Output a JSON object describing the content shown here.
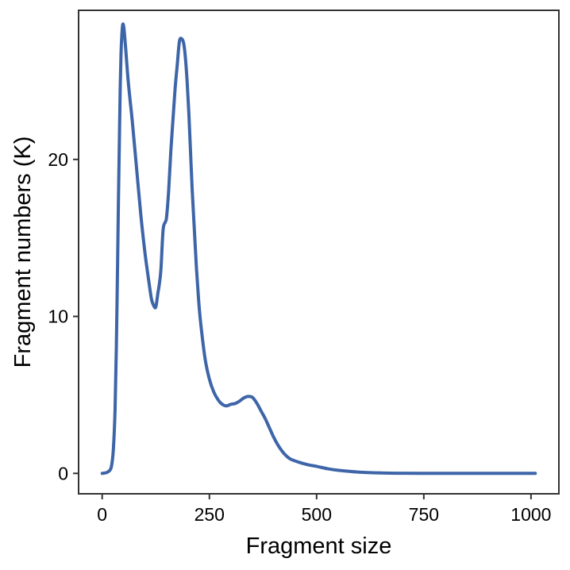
{
  "chart_data": {
    "type": "line",
    "title": "",
    "xlabel": "Fragment size",
    "ylabel": "Fragment numbers (K)",
    "xlim": [
      -55,
      1065
    ],
    "ylim": [
      -1.3,
      29.5
    ],
    "xticks": [
      0,
      250,
      500,
      750,
      1000
    ],
    "yticks": [
      0,
      10,
      20
    ],
    "xtick_labels": [
      "0",
      "250",
      "500",
      "750",
      "1000"
    ],
    "ytick_labels": [
      "0",
      "10",
      "20"
    ],
    "grid": false,
    "legend": "none",
    "colors": {
      "line": "#3d65a8",
      "frame": "#333333",
      "background": "#ffffff"
    },
    "series": [
      {
        "x": [
          0,
          10,
          18,
          22,
          26,
          30,
          33,
          36,
          38,
          40,
          42,
          44,
          46,
          48,
          50,
          52,
          55,
          60,
          65,
          70,
          80,
          90,
          100,
          110,
          115,
          120,
          125,
          130,
          133,
          137,
          142,
          147,
          150,
          155,
          160,
          165,
          170,
          175,
          180,
          185,
          190,
          194,
          198,
          202,
          206,
          210,
          215,
          220,
          225,
          230,
          240,
          250,
          260,
          270,
          280,
          290,
          300,
          310,
          320,
          330,
          340,
          350,
          360,
          370,
          380,
          390,
          400,
          410,
          420,
          430,
          440,
          460,
          480,
          500,
          525,
          550,
          600,
          650,
          700,
          750,
          800,
          850,
          900,
          950,
          1000,
          1010
        ],
        "y": [
          0,
          0.05,
          0.2,
          0.5,
          1.5,
          4.0,
          8.0,
          13.5,
          17.5,
          21.0,
          24.5,
          26.8,
          28.0,
          28.6,
          28.5,
          28.0,
          27.0,
          25.2,
          23.8,
          22.5,
          19.5,
          16.5,
          14.0,
          12.0,
          11.1,
          10.7,
          10.6,
          11.5,
          12.0,
          13.0,
          15.5,
          16.0,
          16.3,
          18.0,
          20.5,
          22.5,
          24.5,
          26.0,
          27.5,
          27.7,
          27.4,
          26.5,
          25.0,
          23.0,
          20.5,
          18.0,
          15.5,
          13.0,
          11.0,
          9.5,
          7.3,
          6.0,
          5.2,
          4.7,
          4.4,
          4.3,
          4.4,
          4.45,
          4.6,
          4.8,
          4.9,
          4.85,
          4.5,
          4.0,
          3.5,
          2.9,
          2.3,
          1.8,
          1.4,
          1.1,
          0.9,
          0.7,
          0.55,
          0.45,
          0.3,
          0.2,
          0.08,
          0.03,
          0.01,
          0.005,
          0.0,
          0.0,
          0.0,
          0.0,
          0.0,
          0.0
        ]
      }
    ]
  }
}
